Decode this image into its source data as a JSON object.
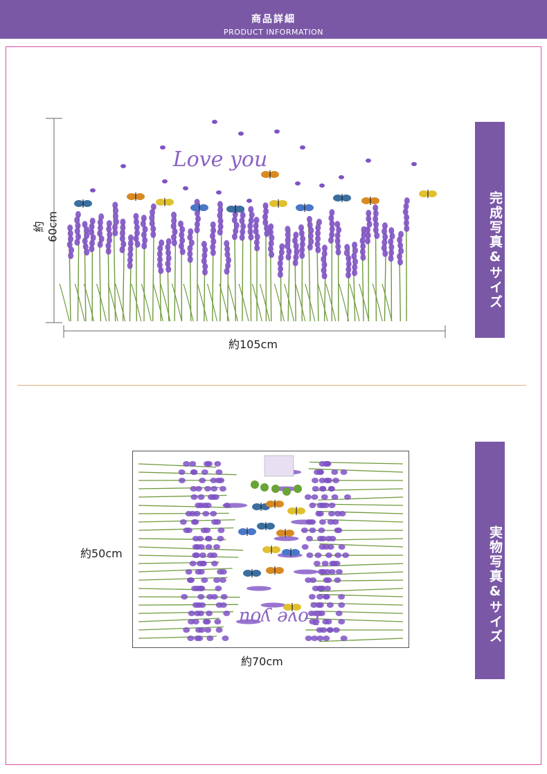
{
  "header": {
    "title": "商品詳細",
    "subtitle": "PRODUCT INFORMATION"
  },
  "section_finished": {
    "tab_label": "完成写真&サイズ",
    "height_label": "約60cm",
    "width_label": "約105cm",
    "decal_text": "Love you"
  },
  "section_actual": {
    "tab_label": "実物写真&サイズ",
    "height_label": "約50cm",
    "width_label": "約70cm",
    "decal_text": "Love you"
  },
  "colors": {
    "accent": "#7a58a6",
    "frame": "#d94fa3",
    "lavender": "#7f52c4",
    "stem": "#6e9a3c"
  }
}
